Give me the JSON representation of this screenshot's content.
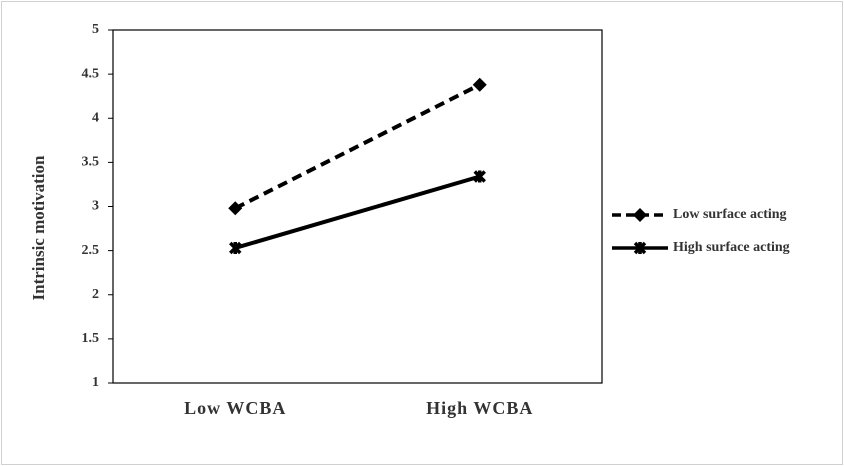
{
  "chart_data": {
    "type": "line",
    "y_label": "Intrinsic motivation",
    "categories": [
      "Low WCBA",
      "High WCBA"
    ],
    "series": [
      {
        "name": "Low surface acting",
        "color": "#000000",
        "dashed": true,
        "marker": "diamond",
        "values": [
          2.98,
          4.38
        ]
      },
      {
        "name": "High surface acting",
        "color": "#000000",
        "dashed": false,
        "marker": "x",
        "values": [
          2.53,
          3.34
        ]
      }
    ],
    "ylim": [
      1,
      5
    ],
    "yticks": [
      1,
      1.5,
      2,
      2.5,
      3,
      3.5,
      4,
      4.5,
      5
    ],
    "grid": false,
    "legend": "right"
  }
}
